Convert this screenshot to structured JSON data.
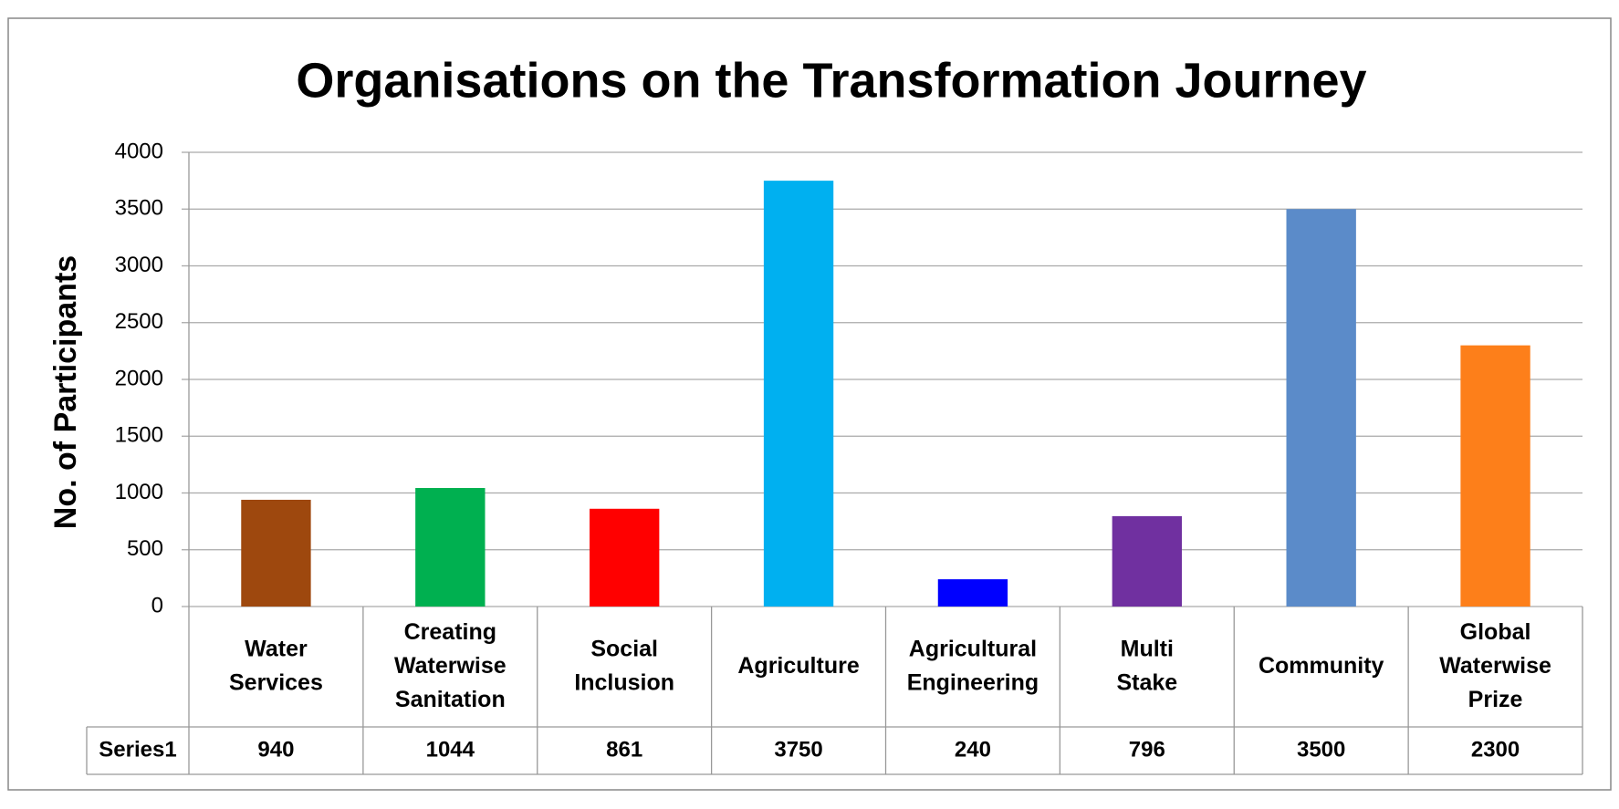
{
  "chart_data": {
    "type": "bar",
    "title": "Organisations on the Transformation Journey",
    "y_label": "No. of Participants",
    "categories": [
      "Water Services",
      "Creating Waterwise Sanitation",
      "Social Inclusion",
      "Agriculture",
      "Agricultural Engineering",
      "Multi Stake",
      "Community",
      "Global Waterwise Prize"
    ],
    "series": [
      {
        "name": "Series1",
        "colors": [
          "#9e480e",
          "#00b050",
          "#ff0000",
          "#00b0f0",
          "#0000ff",
          "#7030a0",
          "#5b8bc9",
          "#fd7f1a"
        ],
        "values": [
          940,
          1044,
          861,
          3750,
          240,
          796,
          3500,
          2300
        ]
      }
    ],
    "ylim": [
      0,
      4000
    ],
    "yticks": [
      0,
      500,
      1000,
      1500,
      2000,
      2500,
      3000,
      3500,
      4000
    ],
    "grid": true
  }
}
